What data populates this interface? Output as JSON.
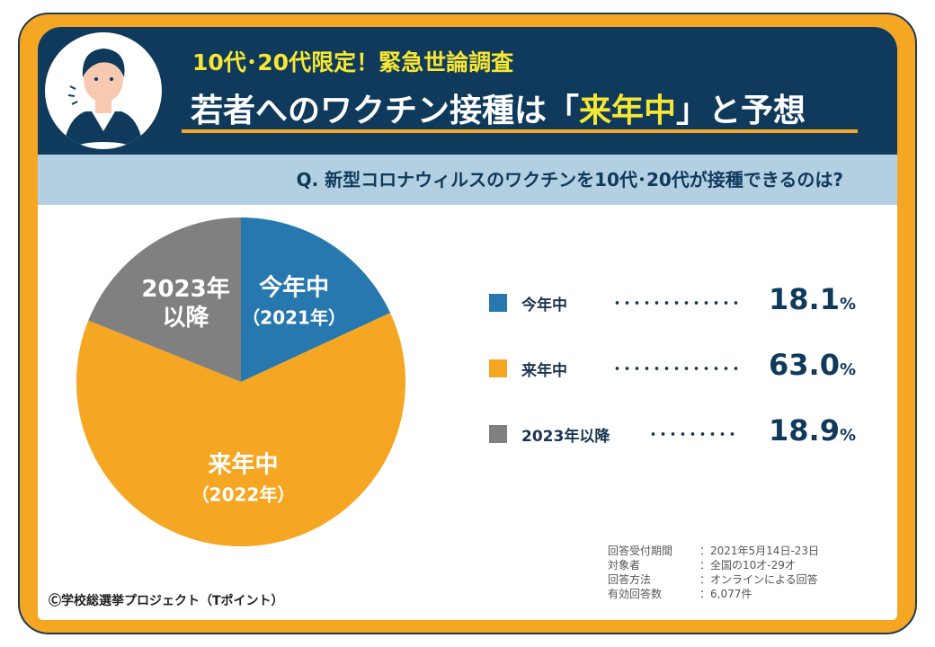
{
  "header": {
    "subtitle": "10代･20代限定！緊急世論調査",
    "title_pre": "若者へのワクチン接種は「",
    "title_hl": "来年中",
    "title_post": "」と予想"
  },
  "question": "Q. 新型コロナウィルスのワクチンを10代･20代が接種できるのは?",
  "chart_data": {
    "type": "pie",
    "start": "top",
    "direction": "clockwise",
    "slices": [
      {
        "label": "今年中",
        "sublabel": "（2021年）",
        "legend": "今年中",
        "value": 18.1,
        "color": "#2878b0"
      },
      {
        "label": "来年中",
        "sublabel": "（2022年）",
        "legend": "来年中",
        "value": 63.0,
        "color": "#f5a623"
      },
      {
        "label": "2023年",
        "sublabel": "以降",
        "legend": "2023年以降",
        "value": 18.9,
        "color": "#808080"
      }
    ],
    "unit": "%"
  },
  "legend_dots": [
    "･････････････",
    "･････････････",
    "･････････"
  ],
  "meta": [
    {
      "k": "回答受付期間",
      "v": "：2021年5月14日-23日"
    },
    {
      "k": "対象者",
      "v": "：全国の10才-29才"
    },
    {
      "k": "回答方法",
      "v": "：オンラインによる回答"
    },
    {
      "k": "有効回答数",
      "v": "：6,077件"
    }
  ],
  "credit": "Ⓒ学校総選挙プロジェクト（Tポイント）",
  "colors": {
    "navy": "#0f3a5c",
    "orange": "#f5a623",
    "title_yellow": "#f7e733",
    "question_bar": "#b3cfe2"
  }
}
